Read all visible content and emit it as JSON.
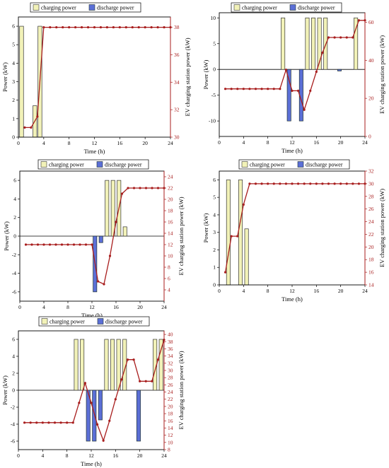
{
  "legend": {
    "charging_label": "charging power",
    "discharge_label": "discharge power"
  },
  "colors": {
    "charging_fill": "#f2f2b8",
    "discharge_fill": "#5b6fd6",
    "station_line": "#a81d1d",
    "axis": "#000000"
  },
  "chart_data": [
    {
      "type": "bar",
      "xlabel": "Time (h)",
      "ylabel": "Power (kW)",
      "y2label": "EV charging station power (kW)",
      "xlim": [
        0,
        24
      ],
      "ylim": [
        0,
        6.5
      ],
      "y2lim": [
        30,
        38.75
      ],
      "xticks": [
        0,
        4,
        8,
        12,
        16,
        20,
        24
      ],
      "yticks": [
        0,
        1,
        2,
        3,
        4,
        5,
        6
      ],
      "y2ticks": [
        30,
        32,
        34,
        36,
        38
      ],
      "charging": [
        [
          0.5,
          6
        ],
        [
          2.6,
          1.7
        ],
        [
          3.4,
          6
        ]
      ],
      "discharge": [],
      "station_power": [
        [
          1,
          30.7
        ],
        [
          2,
          30.7
        ],
        [
          3,
          31.5
        ],
        [
          4,
          38
        ],
        [
          5,
          38
        ],
        [
          6,
          38
        ],
        [
          7,
          38
        ],
        [
          8,
          38
        ],
        [
          9,
          38
        ],
        [
          10,
          38
        ],
        [
          11,
          38
        ],
        [
          12,
          38
        ],
        [
          13,
          38
        ],
        [
          14,
          38
        ],
        [
          15,
          38
        ],
        [
          16,
          38
        ],
        [
          17,
          38
        ],
        [
          18,
          38
        ],
        [
          19,
          38
        ],
        [
          20,
          38
        ],
        [
          21,
          38
        ],
        [
          22,
          38
        ],
        [
          23,
          38
        ],
        [
          24,
          38
        ]
      ]
    },
    {
      "type": "bar",
      "xlabel": "Time (h)",
      "ylabel": "Power (kW)",
      "y2label": "EV charging station power (kW)",
      "xlim": [
        0,
        24
      ],
      "ylim": [
        -13,
        11
      ],
      "y2lim": [
        0,
        65
      ],
      "xticks": [
        0,
        4,
        8,
        12,
        16,
        20,
        24
      ],
      "yticks": [
        -10,
        -5,
        0,
        5,
        10
      ],
      "y2ticks": [
        0,
        20,
        40,
        60
      ],
      "charging": [
        [
          10.5,
          10
        ],
        [
          14.5,
          10
        ],
        [
          15.5,
          10
        ],
        [
          16.5,
          10
        ],
        [
          17.5,
          10
        ],
        [
          22.5,
          10
        ]
      ],
      "discharge": [
        [
          11.5,
          -10
        ],
        [
          13.5,
          -10
        ],
        [
          19.8,
          -0.3
        ]
      ],
      "station_power": [
        [
          1,
          25
        ],
        [
          2,
          25
        ],
        [
          3,
          25
        ],
        [
          4,
          25
        ],
        [
          5,
          25
        ],
        [
          6,
          25
        ],
        [
          7,
          25
        ],
        [
          8,
          25
        ],
        [
          9,
          25
        ],
        [
          10,
          25
        ],
        [
          11,
          35
        ],
        [
          12,
          24
        ],
        [
          13,
          24
        ],
        [
          14,
          14
        ],
        [
          15,
          24
        ],
        [
          16,
          34
        ],
        [
          17,
          44
        ],
        [
          18,
          52
        ],
        [
          19,
          52
        ],
        [
          20,
          52
        ],
        [
          21,
          52
        ],
        [
          22,
          52
        ],
        [
          23,
          61
        ],
        [
          24,
          61
        ]
      ]
    },
    {
      "type": "bar",
      "xlabel": "Time (h)",
      "ylabel": "Power (kW)",
      "y2label": "EV charging station power (kW)",
      "xlim": [
        0,
        24
      ],
      "ylim": [
        -7,
        7
      ],
      "y2lim": [
        2,
        25
      ],
      "xticks": [
        0,
        4,
        8,
        12,
        16,
        20,
        24
      ],
      "yticks": [
        -6,
        -4,
        -2,
        0,
        2,
        4,
        6
      ],
      "y2ticks": [
        4,
        6,
        8,
        10,
        12,
        14,
        16,
        18,
        20,
        22,
        24
      ],
      "charging": [
        [
          14.5,
          6
        ],
        [
          15.5,
          6
        ],
        [
          16.5,
          6
        ],
        [
          17.5,
          1
        ]
      ],
      "discharge": [
        [
          12.5,
          -6
        ],
        [
          13.5,
          -0.7
        ]
      ],
      "station_power": [
        [
          1,
          12
        ],
        [
          2,
          12
        ],
        [
          3,
          12
        ],
        [
          4,
          12
        ],
        [
          5,
          12
        ],
        [
          6,
          12
        ],
        [
          7,
          12
        ],
        [
          8,
          12
        ],
        [
          9,
          12
        ],
        [
          10,
          12
        ],
        [
          11,
          12
        ],
        [
          12,
          12
        ],
        [
          13,
          5.5
        ],
        [
          14,
          5
        ],
        [
          15,
          10
        ],
        [
          16,
          16
        ],
        [
          17,
          21
        ],
        [
          18,
          22
        ],
        [
          19,
          22
        ],
        [
          20,
          22
        ],
        [
          21,
          22
        ],
        [
          22,
          22
        ],
        [
          23,
          22
        ],
        [
          24,
          22
        ]
      ]
    },
    {
      "type": "bar",
      "xlabel": "Time (h)",
      "ylabel": "Power (kW)",
      "y2label": "EV charging station power (kW)",
      "xlim": [
        0,
        24
      ],
      "ylim": [
        0,
        6.5
      ],
      "y2lim": [
        14,
        32
      ],
      "xticks": [
        0,
        4,
        8,
        12,
        16,
        20,
        24
      ],
      "yticks": [
        0,
        1,
        2,
        3,
        4,
        5,
        6
      ],
      "y2ticks": [
        14,
        16,
        18,
        20,
        22,
        24,
        26,
        28,
        30,
        32
      ],
      "charging": [
        [
          1.5,
          6
        ],
        [
          3.5,
          6
        ],
        [
          4.5,
          3.2
        ]
      ],
      "discharge": [],
      "station_power": [
        [
          1,
          16
        ],
        [
          2,
          21.7
        ],
        [
          3,
          21.7
        ],
        [
          4,
          26.7
        ],
        [
          5,
          30
        ],
        [
          6,
          30
        ],
        [
          7,
          30
        ],
        [
          8,
          30
        ],
        [
          9,
          30
        ],
        [
          10,
          30
        ],
        [
          11,
          30
        ],
        [
          12,
          30
        ],
        [
          13,
          30
        ],
        [
          14,
          30
        ],
        [
          15,
          30
        ],
        [
          16,
          30
        ],
        [
          17,
          30
        ],
        [
          18,
          30
        ],
        [
          19,
          30
        ],
        [
          20,
          30
        ],
        [
          21,
          30
        ],
        [
          22,
          30
        ],
        [
          23,
          30
        ],
        [
          24,
          30
        ]
      ]
    },
    {
      "type": "bar",
      "xlabel": "Time (h)",
      "ylabel": "Power (kW)",
      "y2label": "EV charging station power (kW)",
      "xlim": [
        0,
        24
      ],
      "ylim": [
        -7,
        7
      ],
      "y2lim": [
        8,
        41
      ],
      "xticks": [
        0,
        4,
        8,
        12,
        16,
        20,
        24
      ],
      "yticks": [
        -6,
        -4,
        -2,
        0,
        2,
        4,
        6
      ],
      "y2ticks": [
        8,
        10,
        12,
        14,
        16,
        18,
        20,
        22,
        24,
        26,
        28,
        30,
        32,
        34,
        36,
        38,
        40
      ],
      "charging": [
        [
          9.5,
          6
        ],
        [
          10.5,
          6
        ],
        [
          14.5,
          6
        ],
        [
          15.5,
          6
        ],
        [
          16.5,
          6
        ],
        [
          17.5,
          6
        ],
        [
          22.5,
          6
        ],
        [
          23.5,
          6
        ]
      ],
      "discharge": [
        [
          11.5,
          -6
        ],
        [
          12.5,
          -6
        ],
        [
          13.5,
          -3.5
        ],
        [
          19.8,
          -6
        ]
      ],
      "station_power": [
        [
          1,
          15.5
        ],
        [
          2,
          15.5
        ],
        [
          3,
          15.5
        ],
        [
          4,
          15.5
        ],
        [
          5,
          15.5
        ],
        [
          6,
          15.5
        ],
        [
          7,
          15.5
        ],
        [
          8,
          15.5
        ],
        [
          9,
          15.5
        ],
        [
          10,
          21
        ],
        [
          11,
          26.5
        ],
        [
          12,
          21
        ],
        [
          13,
          15
        ],
        [
          14,
          10.5
        ],
        [
          15,
          16
        ],
        [
          16,
          22
        ],
        [
          17,
          27.5
        ],
        [
          18,
          33
        ],
        [
          19,
          33
        ],
        [
          20,
          27
        ],
        [
          21,
          27
        ],
        [
          22,
          27
        ],
        [
          23,
          33
        ],
        [
          24,
          38.5
        ]
      ]
    }
  ]
}
